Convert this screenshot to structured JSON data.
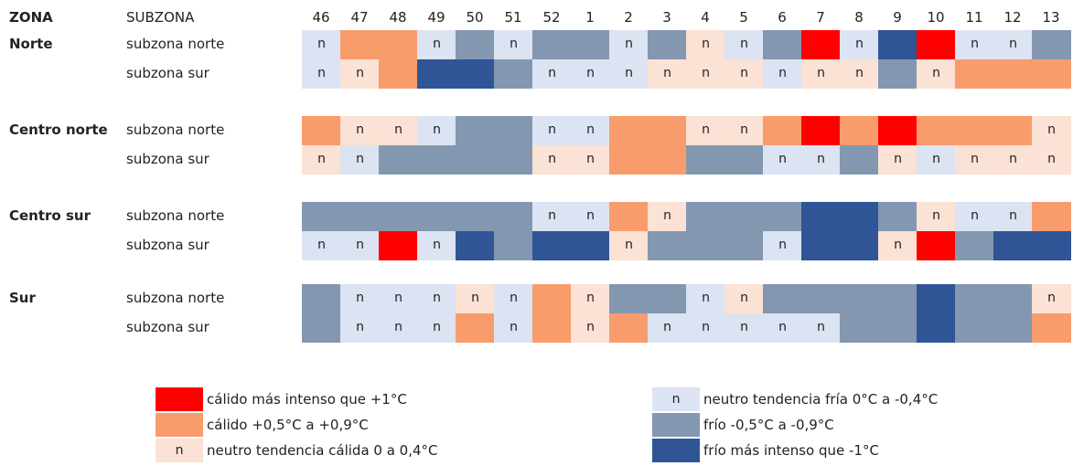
{
  "header": {
    "zona": "ZONA",
    "subzona": "SUBZONA",
    "weeks": [
      "46",
      "47",
      "48",
      "49",
      "50",
      "51",
      "52",
      "1",
      "2",
      "3",
      "4",
      "5",
      "6",
      "7",
      "8",
      "9",
      "10",
      "11",
      "12",
      "13"
    ]
  },
  "zones": [
    {
      "name": "Norte",
      "rows": [
        {
          "subzona": "subzona norte",
          "cells": [
            3,
            1,
            1,
            3,
            4,
            3,
            4,
            4,
            3,
            4,
            2,
            3,
            4,
            0,
            3,
            5,
            0,
            3,
            3,
            4
          ]
        },
        {
          "subzona": "subzona sur",
          "cells": [
            3,
            2,
            1,
            5,
            5,
            4,
            3,
            3,
            3,
            2,
            2,
            2,
            3,
            2,
            2,
            4,
            2,
            1,
            1,
            1
          ]
        }
      ]
    },
    {
      "name": "Centro norte",
      "rows": [
        {
          "subzona": "subzona norte",
          "cells": [
            1,
            2,
            2,
            3,
            4,
            4,
            3,
            3,
            1,
            1,
            2,
            2,
            1,
            0,
            1,
            0,
            1,
            1,
            1,
            2
          ]
        },
        {
          "subzona": "subzona sur",
          "cells": [
            2,
            3,
            4,
            4,
            4,
            4,
            2,
            2,
            1,
            1,
            4,
            4,
            3,
            3,
            4,
            2,
            3,
            2,
            2,
            2
          ]
        }
      ]
    },
    {
      "name": "Centro sur",
      "rows": [
        {
          "subzona": "subzona norte",
          "cells": [
            4,
            4,
            4,
            4,
            4,
            4,
            3,
            3,
            1,
            2,
            4,
            4,
            4,
            5,
            5,
            4,
            2,
            3,
            3,
            1
          ]
        },
        {
          "subzona": "subzona sur",
          "cells": [
            3,
            3,
            0,
            3,
            5,
            4,
            5,
            5,
            2,
            4,
            4,
            4,
            3,
            5,
            5,
            2,
            0,
            4,
            5,
            5
          ]
        }
      ]
    },
    {
      "name": "Sur",
      "rows": [
        {
          "subzona": "subzona norte",
          "cells": [
            4,
            3,
            3,
            3,
            2,
            3,
            1,
            2,
            4,
            4,
            3,
            2,
            4,
            4,
            4,
            4,
            5,
            4,
            4,
            2
          ]
        },
        {
          "subzona": "subzona sur",
          "cells": [
            4,
            3,
            3,
            3,
            1,
            3,
            1,
            2,
            1,
            3,
            3,
            3,
            3,
            3,
            4,
            4,
            5,
            4,
            4,
            1
          ]
        }
      ]
    }
  ],
  "legend": [
    {
      "label": "cálido más intenso que +1°C",
      "color": "#ff0000"
    },
    {
      "label": "cálido +0,5°C a +0,9°C",
      "color": "#f89c6c"
    },
    {
      "label": "neutro tendencia cálida 0 a 0,4°C",
      "color": "#fbe2d4",
      "symbol": "n"
    },
    {
      "label": "neutro tendencia fría 0°C a -0,4°C",
      "color": "#dce3f2",
      "symbol": "n"
    },
    {
      "label": "frío -0,5°C a -0,9°C",
      "color": "#8497b0",
      "symbol": ""
    },
    {
      "label": "frío más intenso que -1°C",
      "color": "#2f5597"
    }
  ]
}
